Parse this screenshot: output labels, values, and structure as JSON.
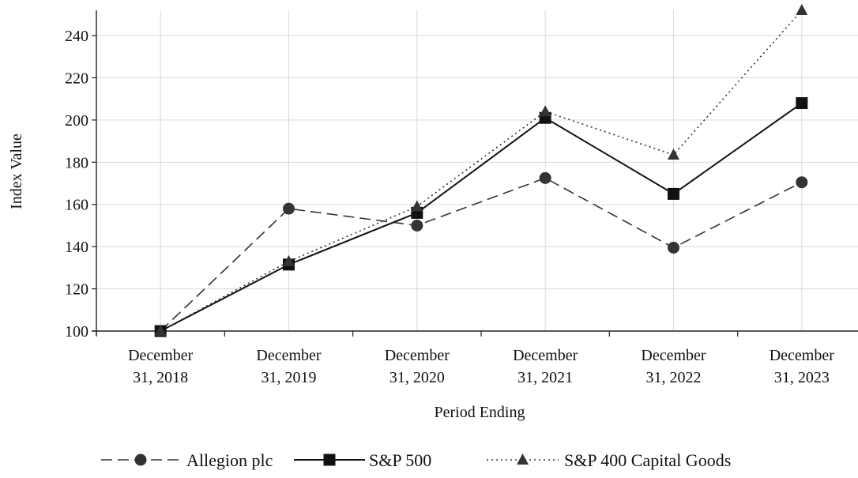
{
  "chart_data": {
    "type": "line",
    "title": "",
    "xlabel": "Period Ending",
    "ylabel": "Index Value",
    "categories": [
      [
        "December",
        "31, 2018"
      ],
      [
        "December",
        "31, 2019"
      ],
      [
        "December",
        "31, 2020"
      ],
      [
        "December",
        "31, 2021"
      ],
      [
        "December",
        "31, 2022"
      ],
      [
        "December",
        "31, 2023"
      ]
    ],
    "ylim": [
      100,
      252
    ],
    "yticks": [
      100,
      120,
      140,
      160,
      180,
      200,
      220,
      240
    ],
    "grid": true,
    "legend_position": "bottom",
    "series": [
      {
        "name": "Allegion plc",
        "line_style": "dashed",
        "marker": "circle",
        "color": "#333333",
        "values": [
          100,
          158,
          150,
          172.5,
          139.5,
          170.5
        ]
      },
      {
        "name": "S&P 500",
        "line_style": "solid",
        "marker": "square",
        "color": "#111111",
        "values": [
          100,
          131.5,
          156,
          201,
          165,
          208
        ]
      },
      {
        "name": "S&P 400 Capital Goods",
        "line_style": "dotted",
        "marker": "triangle",
        "color": "#333333",
        "values": [
          100,
          133,
          159,
          204,
          183.5,
          252
        ]
      }
    ]
  }
}
